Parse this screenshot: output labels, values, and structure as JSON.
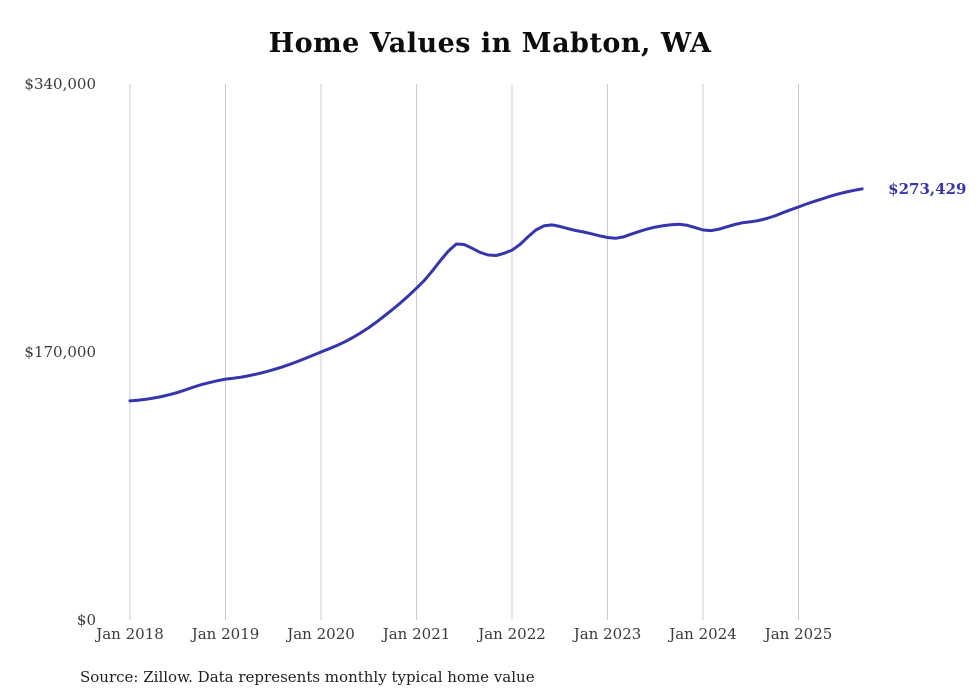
{
  "page": {
    "background": "#ffffff"
  },
  "chart_data": {
    "type": "line",
    "title": "Home Values in Mabton, WA",
    "x_start": "Jan 2018",
    "x_end": "Sep 2025",
    "x_frequency": "monthly",
    "x_tick_labels": [
      "Jan 2018",
      "Jan 2019",
      "Jan 2020",
      "Jan 2021",
      "Jan 2022",
      "Jan 2023",
      "Jan 2024",
      "Jan 2025"
    ],
    "y_tick_labels": [
      "$340,000",
      "$170,000",
      "$0"
    ],
    "ylim": [
      0,
      340000
    ],
    "grid": "vertical-only",
    "legend": "none",
    "line_color": "#3535ad",
    "grid_color": "#cccccc",
    "latest_value": 273429,
    "latest_value_label": "$273,429",
    "source_note": "Source: Zillow. Data represents monthly typical home value",
    "series": [
      {
        "name": "Typical home value (USD)",
        "values": [
          139000,
          139400,
          140000,
          140800,
          141800,
          143000,
          144400,
          146000,
          147800,
          149300,
          150600,
          151800,
          152800,
          153400,
          154100,
          155000,
          156100,
          157400,
          158800,
          160300,
          162000,
          163900,
          165900,
          168000,
          170000,
          172000,
          174100,
          176500,
          179200,
          182200,
          185500,
          189100,
          193000,
          197000,
          201200,
          205700,
          210500,
          215500,
          221500,
          228000,
          234000,
          238500,
          238200,
          235800,
          233200,
          231500,
          231200,
          232600,
          234600,
          238200,
          243000,
          247400,
          250000,
          250600,
          249700,
          248300,
          247100,
          246100,
          245000,
          243700,
          242600,
          242100,
          243000,
          244800,
          246500,
          248000,
          249200,
          250100,
          250700,
          251000,
          250400,
          248900,
          247400,
          247000,
          247900,
          249400,
          250900,
          252000,
          252600,
          253400,
          254700,
          256300,
          258300,
          260200,
          262000,
          263900,
          265600,
          267200,
          268800,
          270300,
          271500,
          272600,
          273429
        ]
      }
    ]
  }
}
